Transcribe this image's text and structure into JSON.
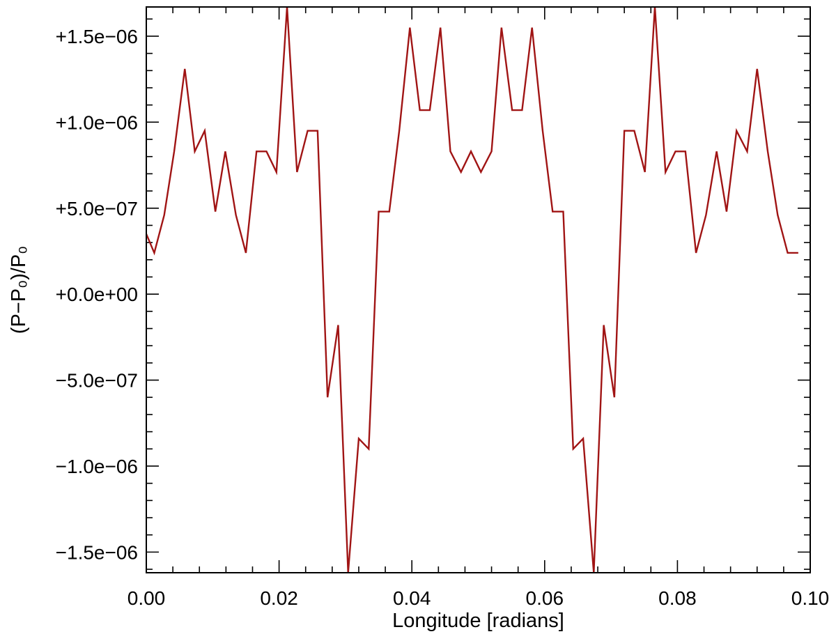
{
  "chart_data": {
    "type": "line",
    "title": "",
    "xlabel": "Longitude [radians]",
    "ylabel": "(P−P₀)/P₀",
    "xlim": [
      0.0,
      0.1
    ],
    "ylim": [
      -1.62e-06,
      1.67e-06
    ],
    "grid": false,
    "x_ticks": [
      0.0,
      0.02,
      0.04,
      0.06,
      0.08,
      0.1
    ],
    "x_tick_labels": [
      "0.00",
      "0.02",
      "0.04",
      "0.06",
      "0.08",
      "0.10"
    ],
    "y_ticks": [
      -1.5e-06,
      -1e-06,
      -5e-07,
      0.0,
      5e-07,
      1e-06,
      1.5e-06
    ],
    "y_tick_labels": [
      "−1.5e−06",
      "−1.0e−06",
      "−5.0e−07",
      "+0.0e+00",
      "+5.0e−07",
      "+1.0e−06",
      "+1.5e−06"
    ],
    "series": [
      {
        "color": "#a01414",
        "x": [
          0.0,
          0.0012,
          0.0027,
          0.0042,
          0.0058,
          0.0073,
          0.0088,
          0.0104,
          0.0119,
          0.0135,
          0.015,
          0.0166,
          0.0181,
          0.0196,
          0.0212,
          0.0227,
          0.0243,
          0.0258,
          0.0273,
          0.0289,
          0.0304,
          0.032,
          0.0335,
          0.035,
          0.0366,
          0.0381,
          0.0397,
          0.0412,
          0.0427,
          0.0443,
          0.0458,
          0.0474,
          0.0489,
          0.0504,
          0.052,
          0.0535,
          0.0551,
          0.0566,
          0.0581,
          0.0597,
          0.0612,
          0.0628,
          0.0643,
          0.0658,
          0.0674,
          0.0689,
          0.0705,
          0.072,
          0.0735,
          0.0751,
          0.0766,
          0.0782,
          0.0797,
          0.0812,
          0.0828,
          0.0843,
          0.0859,
          0.0874,
          0.0889,
          0.0905,
          0.092,
          0.0936,
          0.0951,
          0.0966,
          0.0982
        ],
        "y": [
          3.5e-07,
          2.4e-07,
          4.6e-07,
          8.3e-07,
          1.31e-06,
          8.3e-07,
          9.5e-07,
          4.8e-07,
          8.3e-07,
          4.6e-07,
          2.4e-07,
          8.3e-07,
          8.3e-07,
          7.1e-07,
          1.67e-06,
          7.1e-07,
          9.5e-07,
          9.5e-07,
          -6e-07,
          -1.8e-07,
          -1.62e-06,
          -8.4e-07,
          -9e-07,
          4.8e-07,
          4.8e-07,
          9.5e-07,
          1.55e-06,
          1.07e-06,
          1.07e-06,
          1.55e-06,
          8.3e-07,
          7.1e-07,
          8.3e-07,
          7.1e-07,
          8.3e-07,
          1.55e-06,
          1.07e-06,
          1.07e-06,
          1.55e-06,
          9.5e-07,
          4.8e-07,
          4.8e-07,
          -9e-07,
          -8.4e-07,
          -1.62e-06,
          -1.8e-07,
          -6e-07,
          9.5e-07,
          9.5e-07,
          7.1e-07,
          1.67e-06,
          7.1e-07,
          8.3e-07,
          8.3e-07,
          2.4e-07,
          4.6e-07,
          8.3e-07,
          4.8e-07,
          9.5e-07,
          8.3e-07,
          1.31e-06,
          8.3e-07,
          4.6e-07,
          2.4e-07,
          2.4e-07
        ]
      }
    ]
  }
}
